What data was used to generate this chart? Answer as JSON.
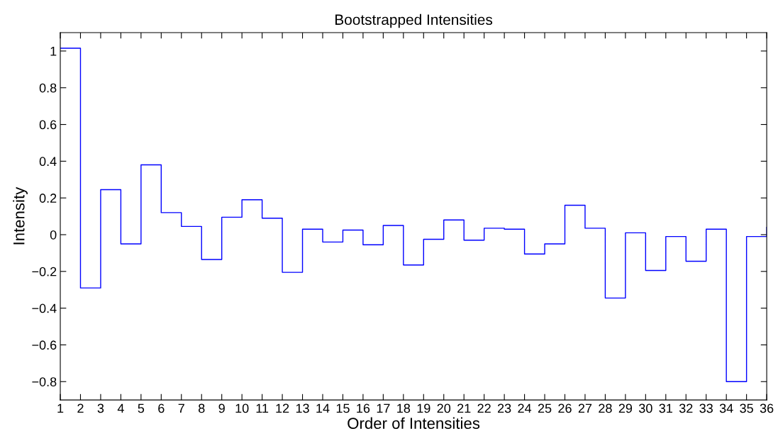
{
  "chart_data": {
    "type": "step",
    "title": "Bootstrapped Intensities",
    "xlabel": "Order of Intensities",
    "ylabel": "Intensity",
    "x": [
      1,
      2,
      3,
      4,
      5,
      6,
      7,
      8,
      9,
      10,
      11,
      12,
      13,
      14,
      15,
      16,
      17,
      18,
      19,
      20,
      21,
      22,
      23,
      24,
      25,
      26,
      27,
      28,
      29,
      30,
      31,
      32,
      33,
      34,
      35,
      36
    ],
    "series": [
      {
        "color": "#0000ff",
        "values": [
          1.015,
          -0.29,
          0.245,
          -0.05,
          0.38,
          0.12,
          0.045,
          -0.135,
          0.095,
          0.19,
          0.09,
          -0.205,
          0.03,
          -0.04,
          0.025,
          -0.055,
          0.05,
          -0.165,
          -0.025,
          0.08,
          -0.03,
          0.035,
          0.03,
          -0.105,
          -0.05,
          0.16,
          0.035,
          -0.345,
          0.01,
          -0.195,
          -0.01,
          -0.145,
          0.03,
          -0.8,
          -0.01,
          0.04
        ]
      }
    ],
    "xlim": [
      1,
      36
    ],
    "xticks": [
      1,
      2,
      3,
      4,
      5,
      6,
      7,
      8,
      9,
      10,
      11,
      12,
      13,
      14,
      15,
      16,
      17,
      18,
      19,
      20,
      21,
      22,
      23,
      24,
      25,
      26,
      27,
      28,
      29,
      30,
      31,
      32,
      33,
      34,
      35,
      36
    ],
    "ylim": [
      -0.9,
      1.1
    ],
    "yticks": [
      {
        "value": -0.8,
        "label": "−0.8"
      },
      {
        "value": -0.6,
        "label": "−0.6"
      },
      {
        "value": -0.4,
        "label": "−0.4"
      },
      {
        "value": -0.2,
        "label": "−0.2"
      },
      0,
      0.2,
      0.4,
      0.6,
      0.8,
      1
    ],
    "grid": false,
    "line_style": "solid",
    "marker": "none"
  }
}
